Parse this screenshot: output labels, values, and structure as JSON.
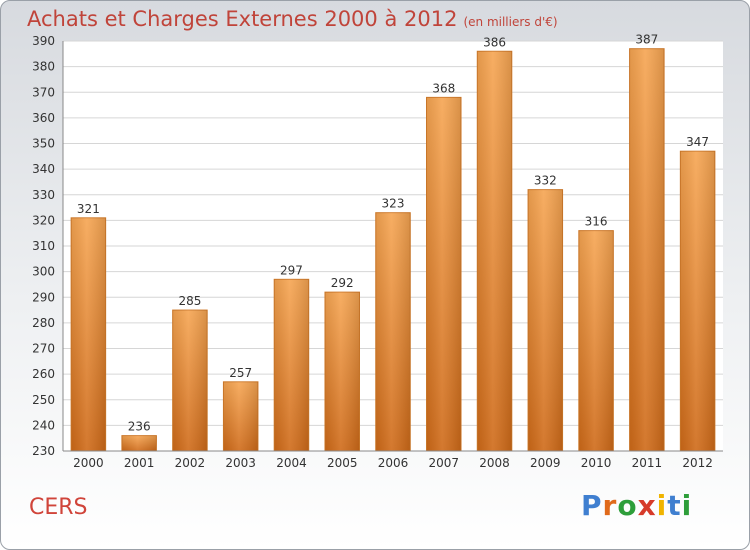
{
  "chart_data": {
    "type": "bar",
    "title": "Achats et Charges Externes 2000 à 2012",
    "unit": "(en milliers d'€)",
    "categories": [
      "2000",
      "2001",
      "2002",
      "2003",
      "2004",
      "2005",
      "2006",
      "2007",
      "2008",
      "2009",
      "2010",
      "2011",
      "2012"
    ],
    "values": [
      321,
      236,
      285,
      257,
      297,
      292,
      323,
      368,
      386,
      332,
      316,
      387,
      347
    ],
    "ylim": [
      230,
      390
    ],
    "yticks": [
      230,
      240,
      250,
      260,
      270,
      280,
      290,
      300,
      310,
      320,
      330,
      340,
      350,
      360,
      370,
      380,
      390
    ],
    "grid": true,
    "bar_color": "#f0913b"
  },
  "place_label": "CERS",
  "logo": {
    "letters": [
      "P",
      "r",
      "o",
      "x",
      "i",
      "t",
      "i"
    ],
    "colors": [
      "#3f7fd0",
      "#e06a1b",
      "#2e9e3a",
      "#d63a2a",
      "#f0b400",
      "#3f7fd0",
      "#2e9e3a"
    ]
  }
}
